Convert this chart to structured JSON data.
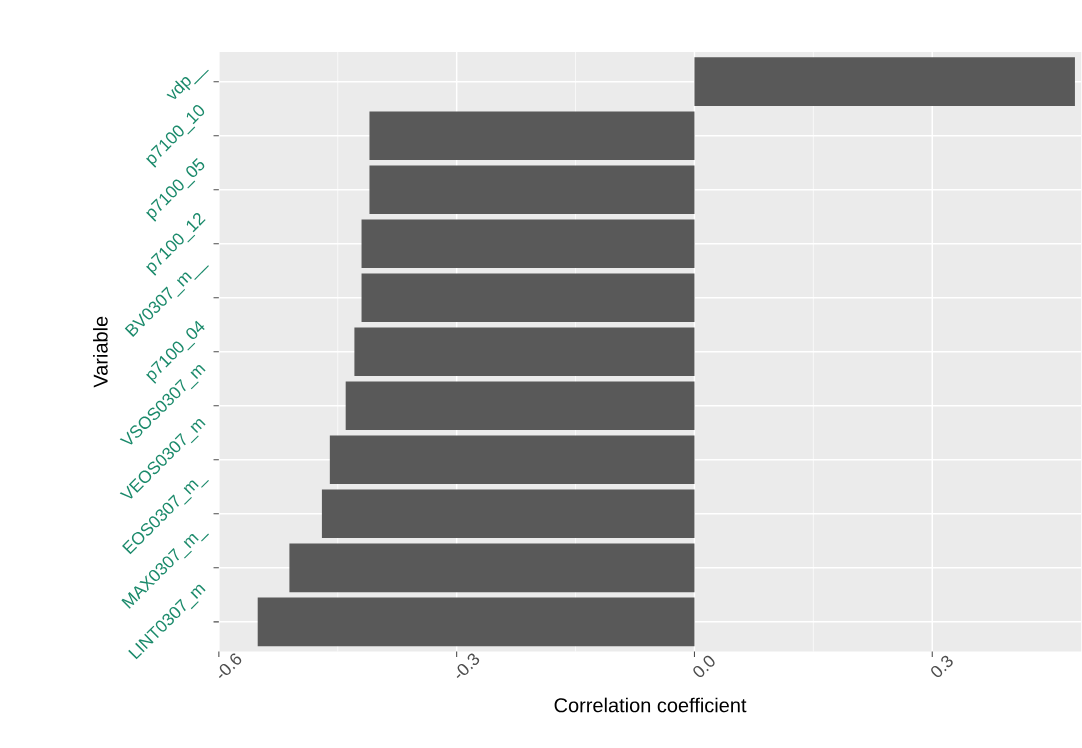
{
  "chart_data": {
    "type": "bar",
    "orientation": "horizontal",
    "xlabel": "Correlation coefficient",
    "ylabel": "Variable",
    "categories": [
      "vdp__",
      "p7100_10",
      "p7100_05",
      "p7100_12",
      "BV0307_m__",
      "p7100_04",
      "VSOS0307_m",
      "VEOS0307_m",
      "EOS0307_m_",
      "MAX0307_m_",
      "LINT0307_m"
    ],
    "values": [
      0.48,
      -0.41,
      -0.41,
      -0.42,
      -0.42,
      -0.429,
      -0.44,
      -0.46,
      -0.47,
      -0.511,
      -0.551
    ],
    "color": "#595959",
    "xlim": [
      -0.6,
      0.488
    ],
    "xticks": [
      -0.6,
      -0.3,
      {
        "value": 0,
        "label": "0.0"
      },
      0.3
    ],
    "grid": true
  }
}
